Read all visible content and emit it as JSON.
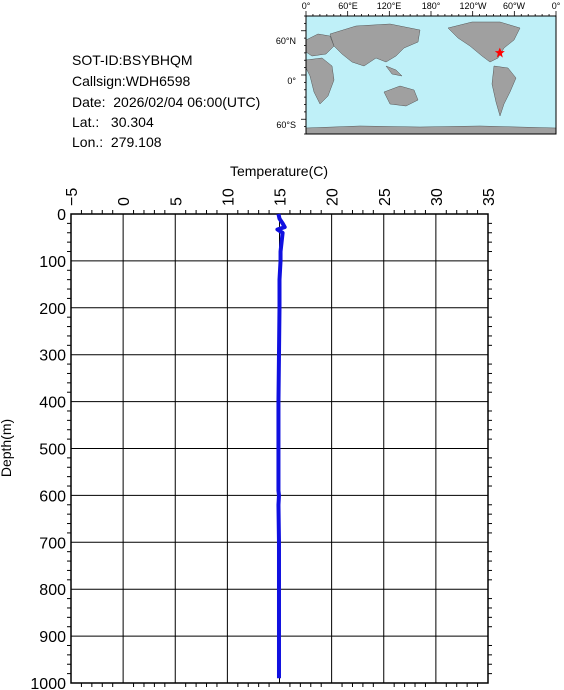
{
  "info": {
    "sot_id": "SOT-ID:BSYBHQM",
    "callsign": "Callsign:WDH6598",
    "date": "Date:  2026/02/04 06:00(UTC)",
    "lat": "Lat.:   30.304",
    "lon": "Lon.:  279.108"
  },
  "map": {
    "top_labels": [
      "0°",
      "60°E",
      "120°E",
      "180°",
      "120°W",
      "60°W",
      "0°"
    ],
    "lat_labels": [
      "60°N",
      "0°",
      "60°S"
    ],
    "marker": {
      "lat": 30.304,
      "lon": 279.108,
      "color": "#ff0000"
    },
    "ocean_color": "#bff0f8",
    "land_color": "#a0a0a0"
  },
  "chart_data": {
    "type": "line",
    "title": "Temperature(C)",
    "xlabel": "Temperature(C)",
    "ylabel": "Depth(m)",
    "xlim": [
      -5,
      35
    ],
    "ylim": [
      0,
      1000
    ],
    "x_ticks": [
      "-5",
      "0",
      "5",
      "10",
      "15",
      "20",
      "25",
      "30",
      "35"
    ],
    "y_ticks": [
      "0",
      "100",
      "200",
      "300",
      "400",
      "500",
      "600",
      "700",
      "800",
      "900",
      "1000"
    ],
    "line_color": "#1010e0",
    "grid": true,
    "series": [
      {
        "x": [
          14.9,
          15.0,
          15.3,
          15.5,
          14.8,
          15.3,
          15.2,
          15.1,
          15.1,
          15.0,
          15.0,
          14.95,
          14.9,
          14.9,
          14.9,
          14.95,
          14.9,
          14.95,
          14.95,
          14.95
        ],
        "y": [
          0,
          10,
          20,
          28,
          33,
          40,
          60,
          80,
          100,
          140,
          200,
          300,
          400,
          500,
          590,
          600,
          620,
          700,
          850,
          990
        ]
      }
    ]
  }
}
